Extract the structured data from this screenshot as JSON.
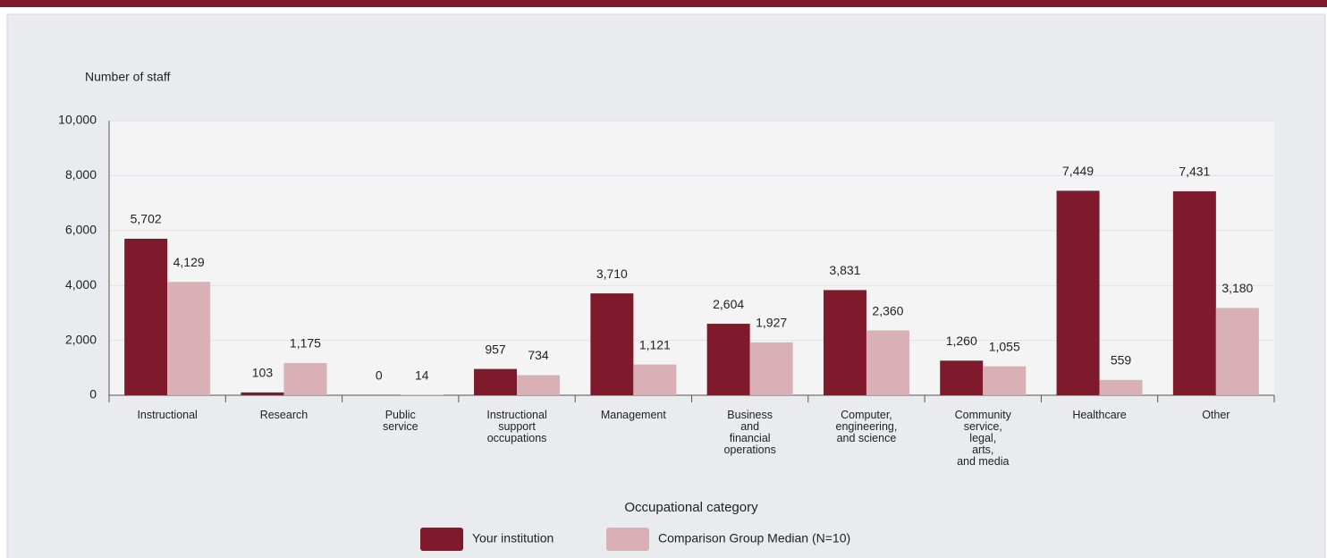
{
  "chart_data": {
    "type": "bar",
    "y_label": "Number of staff",
    "x_label": "Occupational category",
    "categories": [
      [
        "Instructional"
      ],
      [
        "Research"
      ],
      [
        "Public",
        "service"
      ],
      [
        "Instructional",
        "support",
        "occupations"
      ],
      [
        "Management"
      ],
      [
        "Business",
        "and",
        "financial",
        "operations"
      ],
      [
        "Computer,",
        "engineering,",
        "and science"
      ],
      [
        "Community",
        "service,",
        "legal,",
        "arts,",
        "and media"
      ],
      [
        "Healthcare"
      ],
      [
        "Other"
      ]
    ],
    "series": [
      {
        "name": "Your institution",
        "color": "#7e1a2c",
        "values": [
          5702,
          103,
          0,
          957,
          3710,
          2604,
          3831,
          1260,
          7449,
          7431
        ],
        "value_labels": [
          "5,702",
          "103",
          "0",
          "957",
          "3,710",
          "2,604",
          "3,831",
          "1,260",
          "7,449",
          "7,431"
        ]
      },
      {
        "name": "Comparison Group Median (N=10)",
        "color": "#d8b0b6",
        "values": [
          4129,
          1175,
          14,
          734,
          1121,
          1927,
          2360,
          1055,
          559,
          3180
        ],
        "value_labels": [
          "4,129",
          "1,175",
          "14",
          "734",
          "1,121",
          "1,927",
          "2,360",
          "1,055",
          "559",
          "3,180"
        ]
      }
    ],
    "ylim": [
      0,
      10000
    ],
    "yticks": [
      0,
      {
        "value": 2000,
        "label": "2,000"
      },
      {
        "value": 4000,
        "label": "4,000"
      },
      {
        "value": 6000,
        "label": "6,000"
      },
      {
        "value": 8000,
        "label": "8,000"
      },
      {
        "value": 10000,
        "label": "10,000"
      }
    ],
    "grid": true
  }
}
